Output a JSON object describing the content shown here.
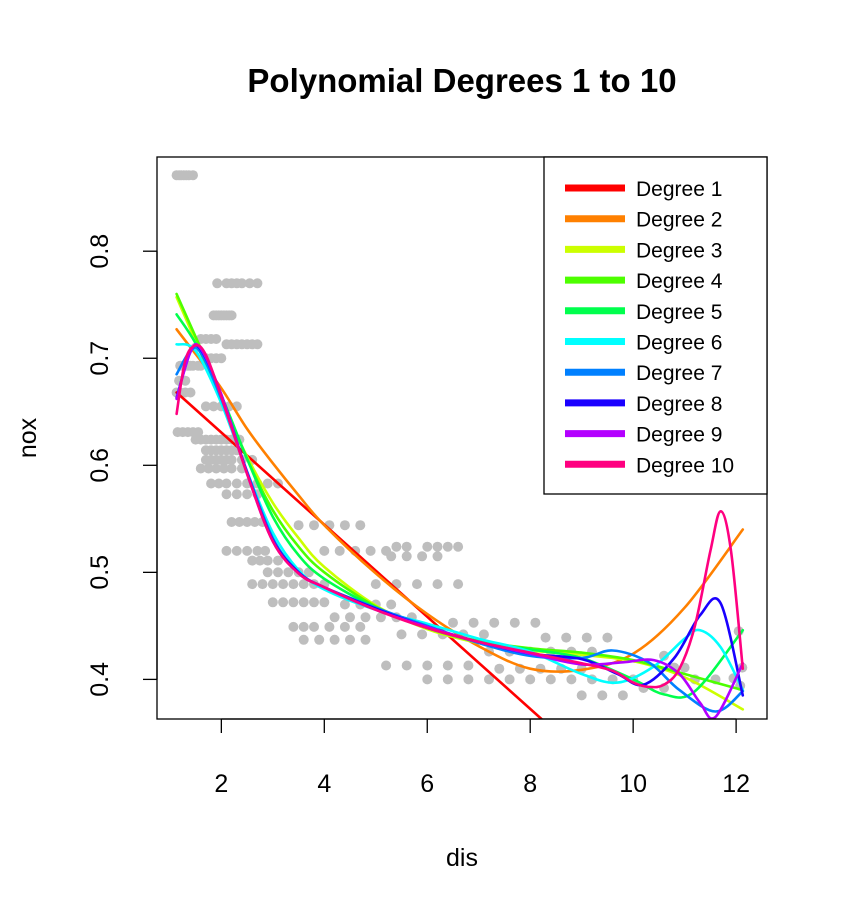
{
  "chart_data": {
    "type": "scatter",
    "title": "Polynomial Degrees 1 to 10",
    "xlabel": "dis",
    "ylabel": "nox",
    "xlim": [
      0.75,
      12.6
    ],
    "ylim": [
      0.363,
      0.888
    ],
    "xticks": [
      2,
      4,
      6,
      8,
      10,
      12
    ],
    "yticks": [
      0.4,
      0.5,
      0.6,
      0.7,
      0.8
    ],
    "ytick_labels": [
      "0.4",
      "0.5",
      "0.6",
      "0.7",
      "0.8"
    ],
    "point_color": "#bebebe",
    "legend_position": "top-right",
    "points": [
      [
        1.13,
        0.871
      ],
      [
        1.18,
        0.871
      ],
      [
        1.22,
        0.871
      ],
      [
        1.27,
        0.871
      ],
      [
        1.32,
        0.871
      ],
      [
        1.37,
        0.871
      ],
      [
        1.45,
        0.871
      ],
      [
        1.2,
        0.693
      ],
      [
        1.25,
        0.693
      ],
      [
        1.3,
        0.693
      ],
      [
        1.35,
        0.693
      ],
      [
        1.4,
        0.693
      ],
      [
        1.45,
        0.693
      ],
      [
        1.55,
        0.693
      ],
      [
        1.6,
        0.693
      ],
      [
        1.13,
        0.668
      ],
      [
        1.2,
        0.668
      ],
      [
        1.3,
        0.668
      ],
      [
        1.4,
        0.668
      ],
      [
        1.18,
        0.679
      ],
      [
        1.3,
        0.679
      ],
      [
        1.15,
        0.631
      ],
      [
        1.25,
        0.631
      ],
      [
        1.35,
        0.631
      ],
      [
        1.45,
        0.631
      ],
      [
        1.55,
        0.631
      ],
      [
        1.5,
        0.71
      ],
      [
        1.6,
        0.718
      ],
      [
        1.7,
        0.718
      ],
      [
        1.8,
        0.718
      ],
      [
        1.9,
        0.718
      ],
      [
        1.7,
        0.7
      ],
      [
        1.8,
        0.7
      ],
      [
        1.9,
        0.7
      ],
      [
        2.0,
        0.7
      ],
      [
        1.85,
        0.74
      ],
      [
        1.9,
        0.74
      ],
      [
        1.95,
        0.74
      ],
      [
        2.0,
        0.74
      ],
      [
        2.05,
        0.74
      ],
      [
        2.1,
        0.74
      ],
      [
        2.15,
        0.74
      ],
      [
        2.2,
        0.74
      ],
      [
        1.92,
        0.77
      ],
      [
        2.1,
        0.77
      ],
      [
        2.2,
        0.77
      ],
      [
        2.3,
        0.77
      ],
      [
        2.4,
        0.77
      ],
      [
        2.55,
        0.77
      ],
      [
        2.7,
        0.77
      ],
      [
        2.1,
        0.713
      ],
      [
        2.2,
        0.713
      ],
      [
        2.3,
        0.713
      ],
      [
        2.4,
        0.713
      ],
      [
        2.5,
        0.713
      ],
      [
        2.6,
        0.713
      ],
      [
        2.7,
        0.713
      ],
      [
        1.7,
        0.655
      ],
      [
        1.85,
        0.655
      ],
      [
        2.0,
        0.655
      ],
      [
        2.15,
        0.655
      ],
      [
        2.3,
        0.655
      ],
      [
        1.5,
        0.624
      ],
      [
        1.6,
        0.624
      ],
      [
        1.7,
        0.624
      ],
      [
        1.8,
        0.624
      ],
      [
        1.9,
        0.624
      ],
      [
        2.0,
        0.624
      ],
      [
        2.1,
        0.624
      ],
      [
        2.2,
        0.624
      ],
      [
        2.35,
        0.624
      ],
      [
        1.7,
        0.614
      ],
      [
        1.8,
        0.614
      ],
      [
        1.9,
        0.614
      ],
      [
        2.0,
        0.614
      ],
      [
        2.1,
        0.614
      ],
      [
        2.2,
        0.614
      ],
      [
        2.3,
        0.614
      ],
      [
        1.7,
        0.605
      ],
      [
        1.8,
        0.605
      ],
      [
        1.9,
        0.605
      ],
      [
        2.0,
        0.605
      ],
      [
        2.1,
        0.605
      ],
      [
        2.2,
        0.605
      ],
      [
        2.4,
        0.605
      ],
      [
        2.6,
        0.605
      ],
      [
        1.6,
        0.597
      ],
      [
        1.75,
        0.597
      ],
      [
        1.9,
        0.597
      ],
      [
        2.05,
        0.597
      ],
      [
        2.2,
        0.597
      ],
      [
        2.4,
        0.597
      ],
      [
        1.8,
        0.583
      ],
      [
        1.95,
        0.583
      ],
      [
        2.1,
        0.583
      ],
      [
        2.3,
        0.583
      ],
      [
        2.5,
        0.583
      ],
      [
        2.7,
        0.583
      ],
      [
        2.9,
        0.583
      ],
      [
        3.1,
        0.583
      ],
      [
        2.1,
        0.573
      ],
      [
        2.3,
        0.573
      ],
      [
        2.5,
        0.573
      ],
      [
        2.7,
        0.573
      ],
      [
        2.2,
        0.547
      ],
      [
        2.35,
        0.547
      ],
      [
        2.5,
        0.547
      ],
      [
        2.65,
        0.547
      ],
      [
        2.8,
        0.547
      ],
      [
        2.1,
        0.52
      ],
      [
        2.3,
        0.52
      ],
      [
        2.5,
        0.52
      ],
      [
        2.7,
        0.52
      ],
      [
        2.85,
        0.52
      ],
      [
        2.6,
        0.511
      ],
      [
        2.75,
        0.511
      ],
      [
        2.9,
        0.511
      ],
      [
        3.1,
        0.511
      ],
      [
        2.6,
        0.489
      ],
      [
        2.8,
        0.489
      ],
      [
        3.0,
        0.489
      ],
      [
        3.2,
        0.489
      ],
      [
        3.4,
        0.489
      ],
      [
        3.6,
        0.489
      ],
      [
        3.8,
        0.489
      ],
      [
        4.0,
        0.489
      ],
      [
        2.9,
        0.5
      ],
      [
        3.1,
        0.5
      ],
      [
        3.3,
        0.5
      ],
      [
        3.5,
        0.5
      ],
      [
        3.7,
        0.5
      ],
      [
        3.0,
        0.472
      ],
      [
        3.2,
        0.472
      ],
      [
        3.4,
        0.472
      ],
      [
        3.6,
        0.472
      ],
      [
        3.8,
        0.472
      ],
      [
        4.0,
        0.472
      ],
      [
        3.4,
        0.449
      ],
      [
        3.6,
        0.449
      ],
      [
        3.8,
        0.449
      ],
      [
        4.1,
        0.449
      ],
      [
        4.4,
        0.449
      ],
      [
        4.7,
        0.449
      ],
      [
        3.6,
        0.437
      ],
      [
        3.9,
        0.437
      ],
      [
        4.2,
        0.437
      ],
      [
        4.5,
        0.437
      ],
      [
        4.8,
        0.437
      ],
      [
        4.0,
        0.52
      ],
      [
        4.3,
        0.52
      ],
      [
        4.6,
        0.52
      ],
      [
        4.9,
        0.52
      ],
      [
        5.2,
        0.52
      ],
      [
        3.5,
        0.544
      ],
      [
        3.8,
        0.544
      ],
      [
        4.1,
        0.544
      ],
      [
        4.4,
        0.544
      ],
      [
        4.7,
        0.544
      ],
      [
        4.2,
        0.458
      ],
      [
        4.5,
        0.458
      ],
      [
        4.8,
        0.458
      ],
      [
        5.1,
        0.458
      ],
      [
        5.4,
        0.458
      ],
      [
        5.7,
        0.458
      ],
      [
        4.4,
        0.47
      ],
      [
        4.7,
        0.47
      ],
      [
        5.0,
        0.47
      ],
      [
        5.3,
        0.47
      ],
      [
        5.4,
        0.524
      ],
      [
        5.6,
        0.524
      ],
      [
        6.0,
        0.524
      ],
      [
        6.2,
        0.524
      ],
      [
        6.4,
        0.524
      ],
      [
        6.6,
        0.524
      ],
      [
        5.3,
        0.515
      ],
      [
        5.6,
        0.515
      ],
      [
        5.9,
        0.515
      ],
      [
        6.2,
        0.515
      ],
      [
        5.0,
        0.489
      ],
      [
        5.4,
        0.489
      ],
      [
        5.8,
        0.489
      ],
      [
        6.2,
        0.489
      ],
      [
        6.6,
        0.489
      ],
      [
        5.5,
        0.442
      ],
      [
        5.9,
        0.442
      ],
      [
        6.3,
        0.442
      ],
      [
        6.7,
        0.442
      ],
      [
        7.1,
        0.442
      ],
      [
        5.2,
        0.413
      ],
      [
        5.6,
        0.413
      ],
      [
        6.0,
        0.413
      ],
      [
        6.4,
        0.413
      ],
      [
        6.8,
        0.413
      ],
      [
        6.0,
        0.4
      ],
      [
        6.4,
        0.4
      ],
      [
        6.8,
        0.4
      ],
      [
        7.2,
        0.4
      ],
      [
        7.6,
        0.4
      ],
      [
        8.0,
        0.4
      ],
      [
        6.5,
        0.453
      ],
      [
        6.9,
        0.453
      ],
      [
        7.3,
        0.453
      ],
      [
        7.7,
        0.453
      ],
      [
        8.1,
        0.453
      ],
      [
        7.2,
        0.426
      ],
      [
        7.6,
        0.426
      ],
      [
        8.0,
        0.426
      ],
      [
        8.4,
        0.426
      ],
      [
        8.8,
        0.426
      ],
      [
        9.2,
        0.426
      ],
      [
        7.4,
        0.41
      ],
      [
        7.8,
        0.41
      ],
      [
        8.2,
        0.41
      ],
      [
        8.6,
        0.41
      ],
      [
        9.0,
        0.41
      ],
      [
        8.3,
        0.439
      ],
      [
        8.7,
        0.439
      ],
      [
        9.1,
        0.439
      ],
      [
        9.5,
        0.439
      ],
      [
        8.4,
        0.4
      ],
      [
        8.8,
        0.4
      ],
      [
        9.2,
        0.4
      ],
      [
        9.6,
        0.4
      ],
      [
        10.0,
        0.4
      ],
      [
        9.0,
        0.385
      ],
      [
        9.4,
        0.385
      ],
      [
        9.8,
        0.385
      ],
      [
        10.2,
        0.392
      ],
      [
        10.6,
        0.392
      ],
      [
        10.6,
        0.422
      ],
      [
        10.8,
        0.411
      ],
      [
        11.0,
        0.411
      ],
      [
        11.2,
        0.4
      ],
      [
        11.6,
        0.4
      ],
      [
        12.05,
        0.445
      ],
      [
        12.12,
        0.411
      ],
      [
        12.08,
        0.394
      ],
      [
        11.95,
        0.401
      ]
    ],
    "series": [
      {
        "name": "Degree 1",
        "color": "#FF0000",
        "x": [
          1.13,
          8.22
        ],
        "y": [
          0.668,
          0.363
        ]
      },
      {
        "name": "Degree 2",
        "color": "#FF8000",
        "x": [
          1.13,
          1.5,
          2,
          2.5,
          3,
          3.5,
          4,
          5,
          6,
          7,
          8,
          9,
          10,
          11,
          12.13
        ],
        "y": [
          0.727,
          0.704,
          0.672,
          0.634,
          0.602,
          0.572,
          0.544,
          0.499,
          0.461,
          0.431,
          0.41,
          0.409,
          0.424,
          0.467,
          0.54
        ]
      },
      {
        "name": "Degree 3",
        "color": "#CCFF00",
        "x": [
          1.13,
          1.5,
          2,
          2.5,
          3,
          3.5,
          4,
          5,
          6,
          7,
          8,
          9,
          10,
          11,
          12.13
        ],
        "y": [
          0.757,
          0.716,
          0.66,
          0.608,
          0.565,
          0.532,
          0.505,
          0.469,
          0.447,
          0.434,
          0.427,
          0.423,
          0.417,
          0.402,
          0.372
        ]
      },
      {
        "name": "Degree 4",
        "color": "#4DFF00",
        "x": [
          1.13,
          1.5,
          2,
          2.5,
          3,
          3.5,
          4,
          5,
          6,
          7,
          8,
          9,
          10,
          11,
          12.13
        ],
        "y": [
          0.76,
          0.72,
          0.665,
          0.606,
          0.558,
          0.524,
          0.5,
          0.468,
          0.448,
          0.436,
          0.429,
          0.425,
          0.418,
          0.405,
          0.39
        ]
      },
      {
        "name": "Degree 5",
        "color": "#00FF4D",
        "x": [
          1.13,
          1.5,
          2,
          2.5,
          3,
          3.5,
          4,
          5,
          6,
          7,
          8,
          9,
          10,
          10.6,
          11.2,
          12.13
        ],
        "y": [
          0.741,
          0.714,
          0.665,
          0.606,
          0.552,
          0.516,
          0.494,
          0.467,
          0.448,
          0.435,
          0.428,
          0.42,
          0.4,
          0.386,
          0.389,
          0.446
        ]
      },
      {
        "name": "Degree 6",
        "color": "#00FFFF",
        "x": [
          1.13,
          1.5,
          2,
          2.5,
          3,
          3.5,
          4,
          5,
          6,
          7,
          8,
          9,
          9.7,
          10.4,
          11,
          11.3,
          11.7,
          12.13
        ],
        "y": [
          0.713,
          0.707,
          0.658,
          0.594,
          0.537,
          0.502,
          0.484,
          0.465,
          0.452,
          0.438,
          0.426,
          0.405,
          0.397,
          0.412,
          0.438,
          0.446,
          0.43,
          0.39
        ]
      },
      {
        "name": "Degree 7",
        "color": "#0080FF",
        "x": [
          1.13,
          1.4,
          1.6,
          2,
          2.5,
          3,
          3.5,
          4,
          5,
          6,
          7,
          8,
          9,
          9.6,
          10.3,
          10.9,
          11.6,
          12.13
        ],
        "y": [
          0.685,
          0.707,
          0.705,
          0.662,
          0.594,
          0.532,
          0.5,
          0.486,
          0.467,
          0.45,
          0.434,
          0.422,
          0.42,
          0.427,
          0.416,
          0.39,
          0.37,
          0.389
        ]
      },
      {
        "name": "Degree 8",
        "color": "#1A00FF",
        "x": [
          1.13,
          1.4,
          1.6,
          2,
          2.5,
          3,
          3.5,
          4,
          5,
          6,
          7,
          8,
          9,
          9.7,
          10.2,
          10.8,
          11.3,
          11.7,
          12.13
        ],
        "y": [
          0.663,
          0.706,
          0.708,
          0.666,
          0.593,
          0.53,
          0.5,
          0.486,
          0.466,
          0.449,
          0.435,
          0.424,
          0.419,
          0.405,
          0.395,
          0.42,
          0.46,
          0.471,
          0.385
        ]
      },
      {
        "name": "Degree 9",
        "color": "#B300FF",
        "x": [
          1.13,
          1.4,
          1.6,
          2,
          2.5,
          3,
          3.5,
          4,
          5,
          6,
          7,
          8,
          9,
          9.8,
          10.4,
          10.9,
          11.3,
          11.6,
          12.13
        ],
        "y": [
          0.662,
          0.706,
          0.709,
          0.666,
          0.592,
          0.529,
          0.499,
          0.486,
          0.465,
          0.449,
          0.435,
          0.424,
          0.414,
          0.416,
          0.418,
          0.405,
          0.378,
          0.365,
          0.415
        ]
      },
      {
        "name": "Degree 10",
        "color": "#FF0080",
        "x": [
          1.13,
          1.3,
          1.5,
          1.7,
          2,
          2.5,
          3,
          3.5,
          4,
          5,
          6,
          7,
          8,
          9,
          9.6,
          10,
          10.3,
          10.6,
          10.9,
          11.2,
          11.5,
          11.7,
          11.9,
          12.13
        ],
        "y": [
          0.648,
          0.698,
          0.712,
          0.703,
          0.664,
          0.592,
          0.529,
          0.499,
          0.486,
          0.465,
          0.448,
          0.435,
          0.425,
          0.415,
          0.408,
          0.397,
          0.393,
          0.395,
          0.41,
          0.45,
          0.52,
          0.557,
          0.52,
          0.41
        ]
      }
    ]
  }
}
